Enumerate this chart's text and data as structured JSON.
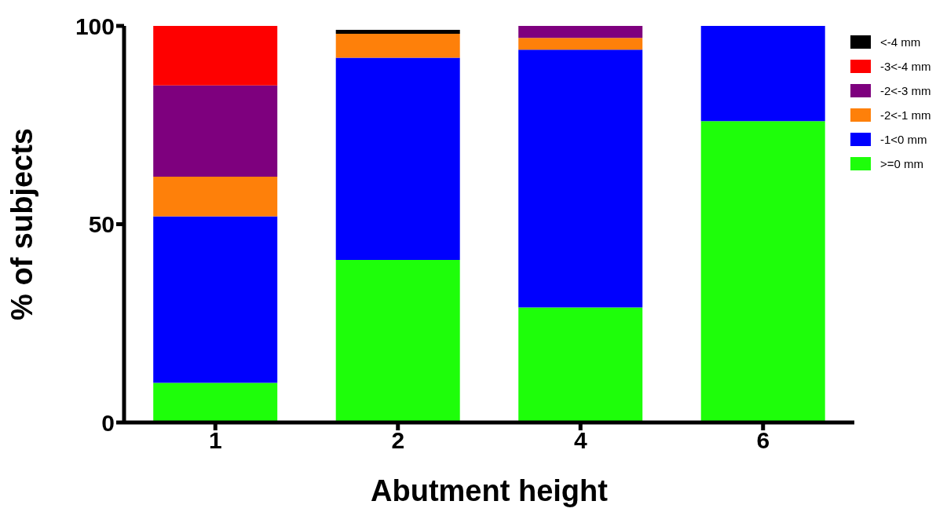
{
  "chart_data": {
    "type": "bar",
    "stacked": true,
    "xlabel": "Abutment height",
    "ylabel": "% of subjects",
    "categories": [
      "1",
      "2",
      "4",
      "6"
    ],
    "ylim": [
      0,
      100
    ],
    "yticks": [
      0,
      50,
      100
    ],
    "legend": "top right",
    "grid": false,
    "series": [
      {
        "name": ">=0 mm",
        "color": "#1efe0a",
        "values": [
          10,
          41,
          29,
          76
        ]
      },
      {
        "name": "-1<0 mm",
        "color": "#0000fe",
        "values": [
          42,
          51,
          65,
          24
        ]
      },
      {
        "name": "-2<-1 mm",
        "color": "#fe800a",
        "values": [
          10,
          6,
          3,
          null
        ]
      },
      {
        "name": "-2<-3 mm",
        "color": "#7e007e",
        "values": [
          23,
          null,
          3,
          null
        ]
      },
      {
        "name": "-3<-4 mm",
        "color": "#fe0000",
        "values": [
          15,
          null,
          null,
          null
        ]
      },
      {
        "name": "<-4 mm",
        "color": "#000000",
        "values": [
          null,
          1,
          null,
          null
        ]
      }
    ]
  }
}
